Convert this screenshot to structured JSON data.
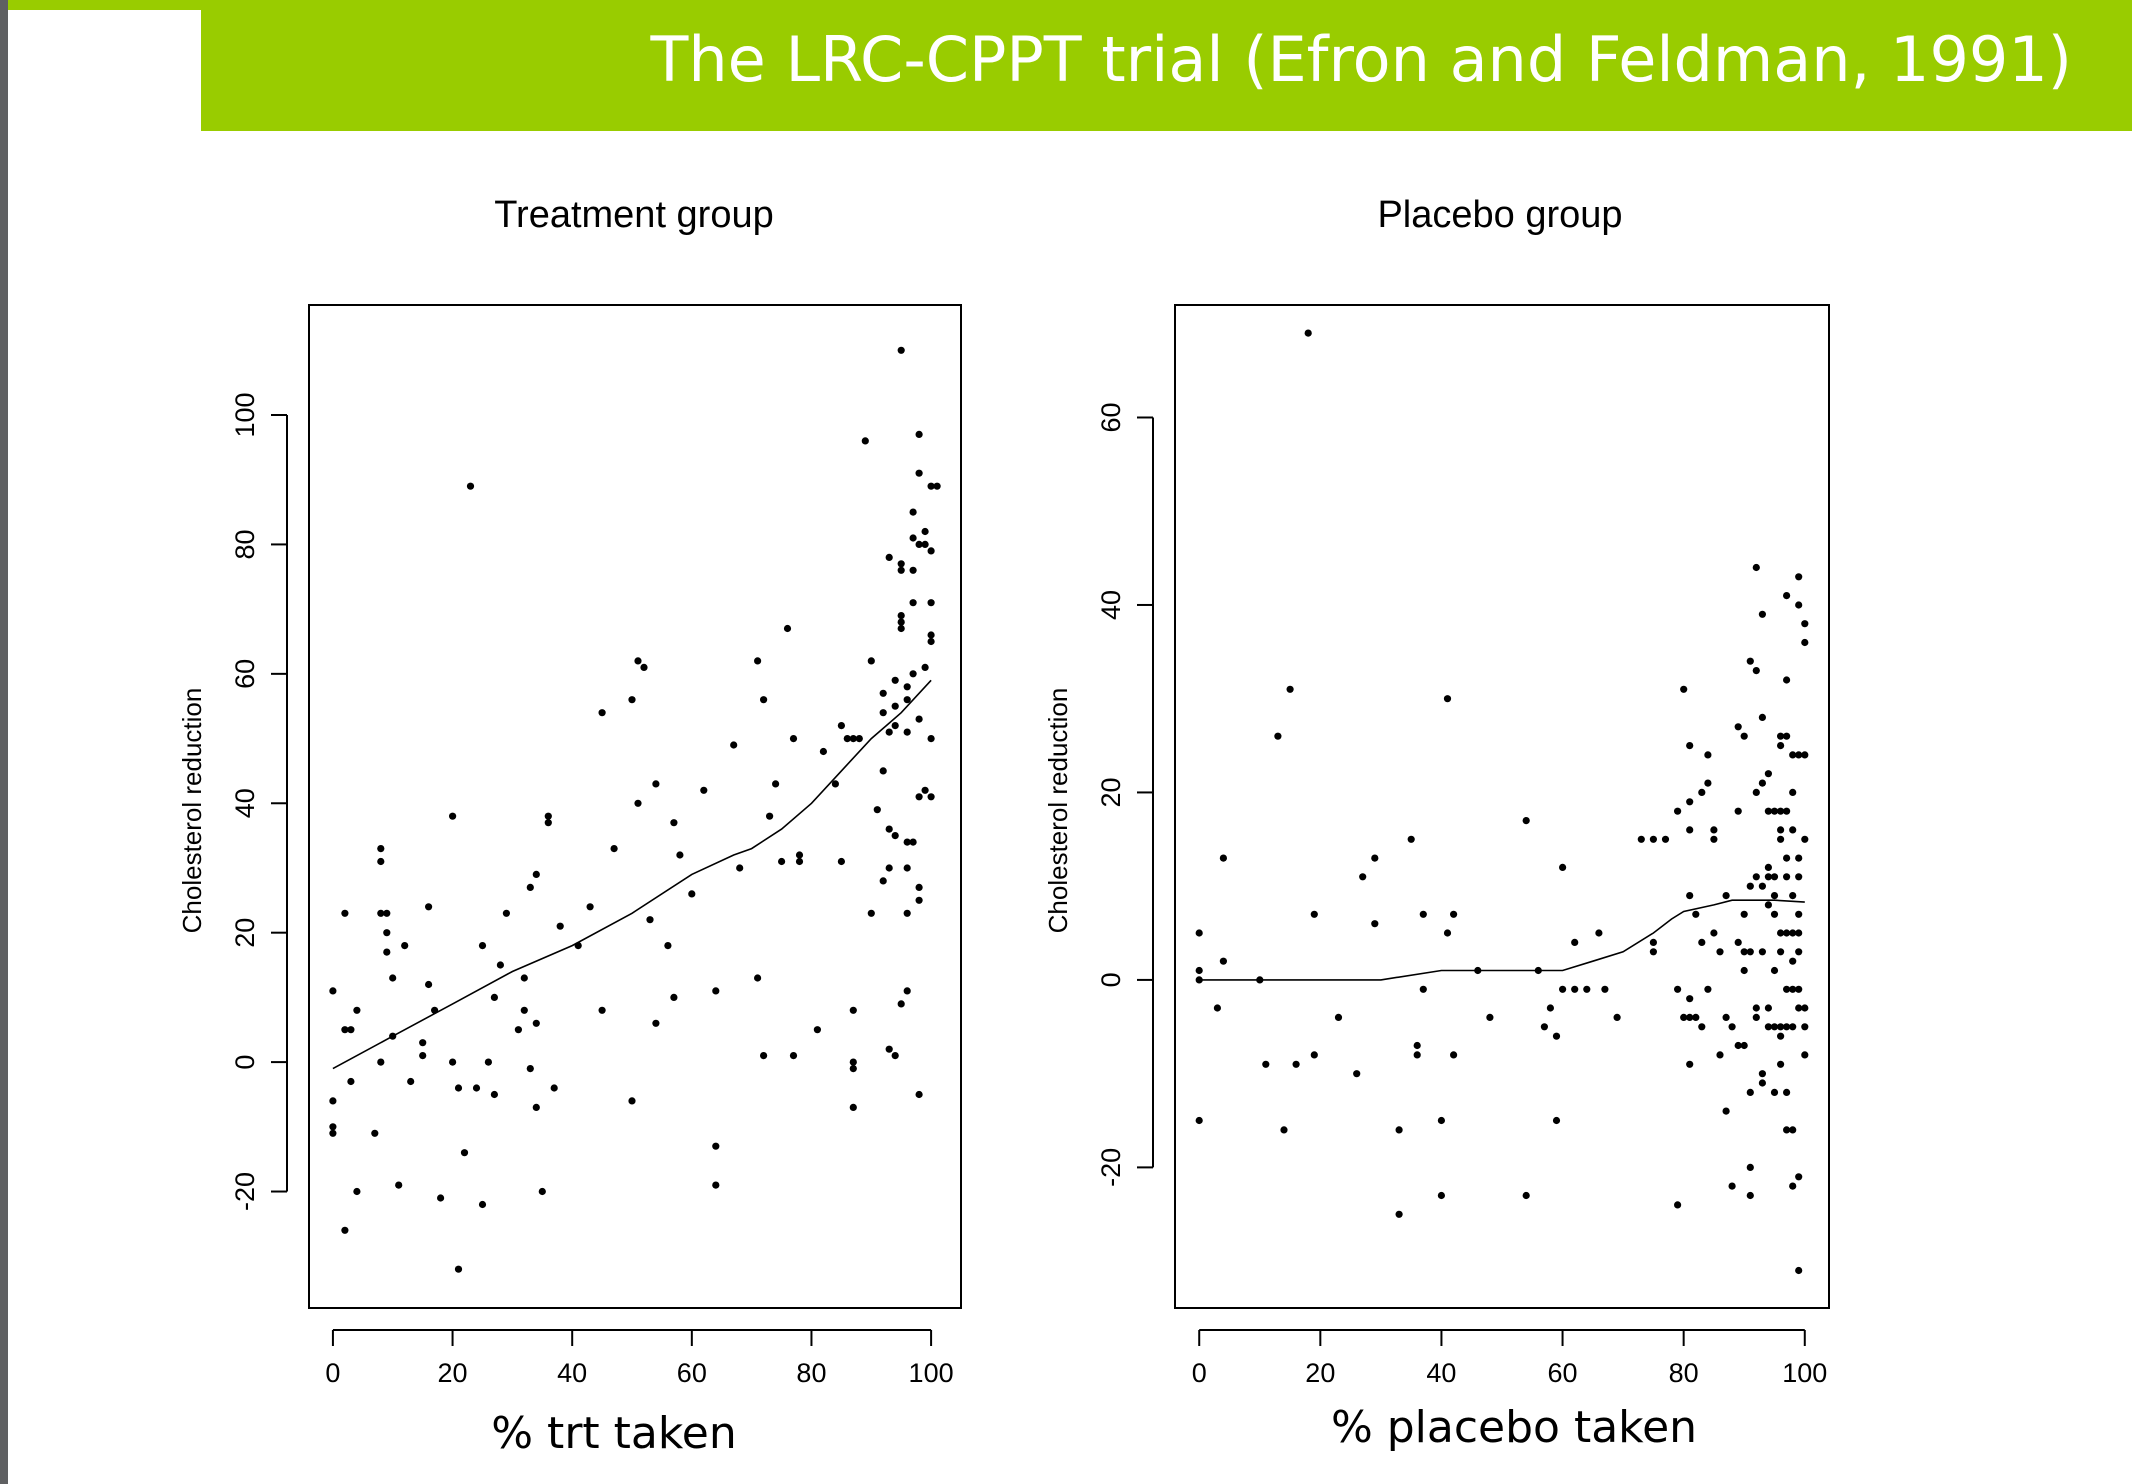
{
  "slide": {
    "title": "The LRC-CPPT trial (Efron and Feldman, 1991)",
    "accent_color": "#99cc00",
    "sidebar_color": "#5f6062"
  },
  "chart_data": [
    {
      "type": "scatter",
      "title": "Treatment group",
      "xlabel": "% trt taken",
      "ylabel": "Cholesterol reduction",
      "xlim": [
        -4,
        105
      ],
      "ylim": [
        -38,
        117
      ],
      "xticks": [
        0,
        20,
        40,
        60,
        80,
        100
      ],
      "yticks": [
        -20,
        0,
        20,
        40,
        60,
        80,
        100
      ],
      "grid": false,
      "points": [
        [
          0,
          11
        ],
        [
          0,
          -6
        ],
        [
          0,
          -10
        ],
        [
          0,
          -11
        ],
        [
          2,
          23
        ],
        [
          2,
          -26
        ],
        [
          2,
          5
        ],
        [
          3,
          5
        ],
        [
          3,
          -3
        ],
        [
          4,
          8
        ],
        [
          4,
          -20
        ],
        [
          7,
          -11
        ],
        [
          8,
          33
        ],
        [
          8,
          31
        ],
        [
          8,
          23
        ],
        [
          8,
          0
        ],
        [
          9,
          23
        ],
        [
          9,
          20
        ],
        [
          9,
          17
        ],
        [
          10,
          13
        ],
        [
          10,
          4
        ],
        [
          11,
          -19
        ],
        [
          12,
          18
        ],
        [
          13,
          -3
        ],
        [
          15,
          3
        ],
        [
          15,
          1
        ],
        [
          16,
          24
        ],
        [
          16,
          12
        ],
        [
          17,
          8
        ],
        [
          18,
          -21
        ],
        [
          20,
          38
        ],
        [
          20,
          0
        ],
        [
          21,
          -4
        ],
        [
          21,
          -32
        ],
        [
          22,
          -14
        ],
        [
          23,
          89
        ],
        [
          24,
          -4
        ],
        [
          25,
          18
        ],
        [
          25,
          -22
        ],
        [
          26,
          0
        ],
        [
          27,
          10
        ],
        [
          27,
          -5
        ],
        [
          28,
          15
        ],
        [
          29,
          23
        ],
        [
          31,
          5
        ],
        [
          32,
          13
        ],
        [
          32,
          8
        ],
        [
          33,
          27
        ],
        [
          33,
          -1
        ],
        [
          34,
          29
        ],
        [
          34,
          6
        ],
        [
          34,
          -7
        ],
        [
          35,
          -20
        ],
        [
          36,
          38
        ],
        [
          36,
          37
        ],
        [
          37,
          -4
        ],
        [
          38,
          21
        ],
        [
          41,
          18
        ],
        [
          43,
          24
        ],
        [
          45,
          54
        ],
        [
          45,
          8
        ],
        [
          47,
          33
        ],
        [
          50,
          56
        ],
        [
          50,
          -6
        ],
        [
          51,
          62
        ],
        [
          51,
          40
        ],
        [
          52,
          61
        ],
        [
          53,
          22
        ],
        [
          54,
          43
        ],
        [
          54,
          6
        ],
        [
          56,
          18
        ],
        [
          57,
          37
        ],
        [
          57,
          10
        ],
        [
          58,
          32
        ],
        [
          60,
          26
        ],
        [
          62,
          42
        ],
        [
          64,
          11
        ],
        [
          64,
          -13
        ],
        [
          64,
          -19
        ],
        [
          67,
          49
        ],
        [
          68,
          30
        ],
        [
          71,
          62
        ],
        [
          71,
          13
        ],
        [
          72,
          56
        ],
        [
          72,
          1
        ],
        [
          73,
          38
        ],
        [
          74,
          43
        ],
        [
          75,
          31
        ],
        [
          76,
          67
        ],
        [
          77,
          50
        ],
        [
          77,
          1
        ],
        [
          78,
          32
        ],
        [
          78,
          31
        ],
        [
          81,
          5
        ],
        [
          82,
          48
        ],
        [
          84,
          43
        ],
        [
          85,
          52
        ],
        [
          85,
          31
        ],
        [
          86,
          50
        ],
        [
          87,
          50
        ],
        [
          87,
          8
        ],
        [
          87,
          0
        ],
        [
          87,
          -1
        ],
        [
          87,
          -7
        ],
        [
          88,
          50
        ],
        [
          89,
          96
        ],
        [
          90,
          62
        ],
        [
          90,
          23
        ],
        [
          91,
          39
        ],
        [
          92,
          57
        ],
        [
          92,
          54
        ],
        [
          92,
          45
        ],
        [
          92,
          28
        ],
        [
          93,
          78
        ],
        [
          93,
          51
        ],
        [
          93,
          36
        ],
        [
          93,
          30
        ],
        [
          93,
          2
        ],
        [
          94,
          59
        ],
        [
          94,
          55
        ],
        [
          94,
          52
        ],
        [
          94,
          35
        ],
        [
          94,
          1
        ],
        [
          95,
          110
        ],
        [
          95,
          77
        ],
        [
          95,
          76
        ],
        [
          95,
          69
        ],
        [
          95,
          68
        ],
        [
          95,
          67
        ],
        [
          95,
          9
        ],
        [
          96,
          58
        ],
        [
          96,
          56
        ],
        [
          96,
          51
        ],
        [
          96,
          34
        ],
        [
          96,
          30
        ],
        [
          96,
          23
        ],
        [
          96,
          11
        ],
        [
          97,
          85
        ],
        [
          97,
          81
        ],
        [
          97,
          76
        ],
        [
          97,
          71
        ],
        [
          97,
          60
        ],
        [
          97,
          34
        ],
        [
          98,
          97
        ],
        [
          98,
          91
        ],
        [
          98,
          80
        ],
        [
          98,
          53
        ],
        [
          98,
          41
        ],
        [
          98,
          27
        ],
        [
          98,
          25
        ],
        [
          98,
          -5
        ],
        [
          99,
          82
        ],
        [
          99,
          80
        ],
        [
          99,
          61
        ],
        [
          99,
          42
        ],
        [
          100,
          89
        ],
        [
          100,
          79
        ],
        [
          100,
          71
        ],
        [
          100,
          66
        ],
        [
          100,
          65
        ],
        [
          100,
          50
        ],
        [
          100,
          41
        ],
        [
          101,
          89
        ]
      ],
      "smooth_line": [
        [
          0,
          -1
        ],
        [
          10,
          4
        ],
        [
          20,
          9
        ],
        [
          30,
          14
        ],
        [
          40,
          18
        ],
        [
          50,
          23
        ],
        [
          60,
          29
        ],
        [
          67,
          32
        ],
        [
          70,
          33
        ],
        [
          75,
          36
        ],
        [
          80,
          40
        ],
        [
          85,
          45
        ],
        [
          90,
          50
        ],
        [
          95,
          54
        ],
        [
          100,
          59
        ]
      ]
    },
    {
      "type": "scatter",
      "title": "Placebo group",
      "xlabel": "% placebo  taken",
      "ylabel": "Cholesterol reduction",
      "xlim": [
        -4,
        104
      ],
      "ylim": [
        -35,
        72
      ],
      "xticks": [
        0,
        20,
        40,
        60,
        80,
        100
      ],
      "yticks": [
        -20,
        0,
        20,
        40,
        60
      ],
      "grid": false,
      "points": [
        [
          0,
          5
        ],
        [
          0,
          1
        ],
        [
          0,
          0
        ],
        [
          0,
          -15
        ],
        [
          3,
          -3
        ],
        [
          4,
          13
        ],
        [
          4,
          2
        ],
        [
          10,
          0
        ],
        [
          11,
          -9
        ],
        [
          13,
          26
        ],
        [
          14,
          -16
        ],
        [
          15,
          31
        ],
        [
          16,
          -9
        ],
        [
          18,
          69
        ],
        [
          19,
          7
        ],
        [
          19,
          -8
        ],
        [
          23,
          -4
        ],
        [
          26,
          -10
        ],
        [
          27,
          11
        ],
        [
          29,
          13
        ],
        [
          29,
          6
        ],
        [
          33,
          -16
        ],
        [
          33,
          -25
        ],
        [
          35,
          15
        ],
        [
          36,
          -7
        ],
        [
          36,
          -8
        ],
        [
          37,
          7
        ],
        [
          37,
          -1
        ],
        [
          40,
          -15
        ],
        [
          40,
          -23
        ],
        [
          41,
          30
        ],
        [
          41,
          5
        ],
        [
          42,
          7
        ],
        [
          42,
          -8
        ],
        [
          46,
          1
        ],
        [
          48,
          -4
        ],
        [
          54,
          17
        ],
        [
          54,
          -23
        ],
        [
          56,
          1
        ],
        [
          57,
          -5
        ],
        [
          58,
          -3
        ],
        [
          59,
          -6
        ],
        [
          59,
          -15
        ],
        [
          60,
          12
        ],
        [
          60,
          -1
        ],
        [
          62,
          4
        ],
        [
          62,
          -1
        ],
        [
          64,
          -1
        ],
        [
          66,
          5
        ],
        [
          67,
          -1
        ],
        [
          69,
          -4
        ],
        [
          73,
          15
        ],
        [
          75,
          15
        ],
        [
          75,
          4
        ],
        [
          75,
          3
        ],
        [
          77,
          15
        ],
        [
          79,
          18
        ],
        [
          79,
          -1
        ],
        [
          79,
          -24
        ],
        [
          80,
          -4
        ],
        [
          80,
          31
        ],
        [
          81,
          25
        ],
        [
          81,
          19
        ],
        [
          81,
          16
        ],
        [
          81,
          9
        ],
        [
          81,
          -2
        ],
        [
          81,
          -4
        ],
        [
          81,
          -9
        ],
        [
          82,
          7
        ],
        [
          82,
          -4
        ],
        [
          83,
          20
        ],
        [
          83,
          4
        ],
        [
          83,
          -5
        ],
        [
          84,
          21
        ],
        [
          84,
          24
        ],
        [
          84,
          -1
        ],
        [
          85,
          16
        ],
        [
          85,
          15
        ],
        [
          85,
          5
        ],
        [
          86,
          3
        ],
        [
          86,
          -8
        ],
        [
          87,
          9
        ],
        [
          87,
          -4
        ],
        [
          87,
          -14
        ],
        [
          88,
          -5
        ],
        [
          88,
          -22
        ],
        [
          89,
          27
        ],
        [
          89,
          18
        ],
        [
          89,
          4
        ],
        [
          89,
          -7
        ],
        [
          90,
          26
        ],
        [
          90,
          7
        ],
        [
          90,
          3
        ],
        [
          90,
          1
        ],
        [
          90,
          -7
        ],
        [
          91,
          34
        ],
        [
          91,
          10
        ],
        [
          91,
          3
        ],
        [
          91,
          -12
        ],
        [
          91,
          -20
        ],
        [
          91,
          -23
        ],
        [
          92,
          44
        ],
        [
          92,
          33
        ],
        [
          92,
          20
        ],
        [
          92,
          11
        ],
        [
          92,
          -3
        ],
        [
          92,
          -4
        ],
        [
          93,
          39
        ],
        [
          93,
          28
        ],
        [
          93,
          21
        ],
        [
          93,
          10
        ],
        [
          93,
          3
        ],
        [
          93,
          -10
        ],
        [
          93,
          -11
        ],
        [
          94,
          22
        ],
        [
          94,
          18
        ],
        [
          94,
          12
        ],
        [
          94,
          11
        ],
        [
          94,
          8
        ],
        [
          94,
          -3
        ],
        [
          94,
          -5
        ],
        [
          95,
          18
        ],
        [
          95,
          11
        ],
        [
          95,
          9
        ],
        [
          95,
          7
        ],
        [
          95,
          1
        ],
        [
          95,
          -5
        ],
        [
          95,
          -12
        ],
        [
          96,
          25
        ],
        [
          96,
          26
        ],
        [
          96,
          18
        ],
        [
          96,
          16
        ],
        [
          96,
          15
        ],
        [
          96,
          5
        ],
        [
          96,
          3
        ],
        [
          96,
          -5
        ],
        [
          96,
          -6
        ],
        [
          96,
          -9
        ],
        [
          97,
          41
        ],
        [
          97,
          32
        ],
        [
          97,
          26
        ],
        [
          97,
          18
        ],
        [
          97,
          13
        ],
        [
          97,
          11
        ],
        [
          97,
          5
        ],
        [
          97,
          -1
        ],
        [
          97,
          -5
        ],
        [
          97,
          -12
        ],
        [
          97,
          -16
        ],
        [
          98,
          24
        ],
        [
          98,
          20
        ],
        [
          98,
          16
        ],
        [
          98,
          9
        ],
        [
          98,
          5
        ],
        [
          98,
          2
        ],
        [
          98,
          -1
        ],
        [
          98,
          -5
        ],
        [
          98,
          -16
        ],
        [
          98,
          -22
        ],
        [
          99,
          43
        ],
        [
          99,
          40
        ],
        [
          99,
          24
        ],
        [
          99,
          13
        ],
        [
          99,
          11
        ],
        [
          99,
          7
        ],
        [
          99,
          5
        ],
        [
          99,
          3
        ],
        [
          99,
          -1
        ],
        [
          99,
          -3
        ],
        [
          99,
          -21
        ],
        [
          99,
          -31
        ],
        [
          100,
          38
        ],
        [
          100,
          36
        ],
        [
          100,
          24
        ],
        [
          100,
          15
        ],
        [
          100,
          -3
        ],
        [
          100,
          -5
        ],
        [
          100,
          -8
        ]
      ],
      "smooth_line": [
        [
          0,
          0
        ],
        [
          10,
          0
        ],
        [
          20,
          0
        ],
        [
          30,
          0
        ],
        [
          40,
          1
        ],
        [
          50,
          1
        ],
        [
          55,
          1
        ],
        [
          60,
          1
        ],
        [
          65,
          2
        ],
        [
          70,
          3
        ],
        [
          75,
          5
        ],
        [
          78,
          6.5
        ],
        [
          80,
          7.3
        ],
        [
          85,
          8
        ],
        [
          88,
          8.5
        ],
        [
          90,
          8.5
        ],
        [
          95,
          8.5
        ],
        [
          100,
          8.3
        ]
      ]
    }
  ]
}
